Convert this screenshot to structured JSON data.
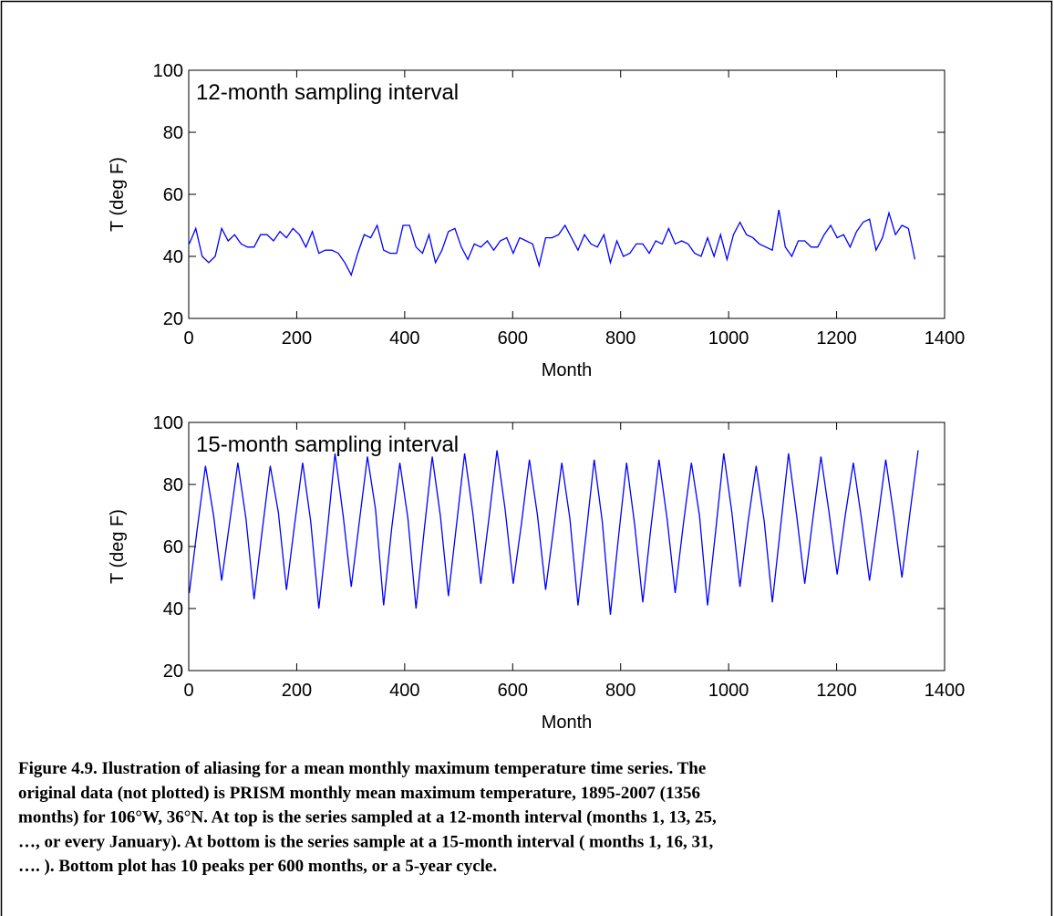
{
  "chart_data": [
    {
      "type": "line",
      "title": "12-month sampling interval",
      "xlabel": "Month",
      "ylabel": "T (deg F)",
      "x": [
        1,
        13,
        25,
        37,
        49,
        61,
        73,
        85,
        97,
        109,
        121,
        133,
        145,
        157,
        169,
        181,
        193,
        205,
        217,
        229,
        241,
        253,
        265,
        277,
        289,
        301,
        313,
        325,
        337,
        349,
        361,
        373,
        385,
        397,
        409,
        421,
        433,
        445,
        457,
        469,
        481,
        493,
        505,
        517,
        529,
        541,
        553,
        565,
        577,
        589,
        601,
        613,
        625,
        637,
        649,
        661,
        673,
        685,
        697,
        709,
        721,
        733,
        745,
        757,
        769,
        781,
        793,
        805,
        817,
        829,
        841,
        853,
        865,
        877,
        889,
        901,
        913,
        925,
        937,
        949,
        961,
        973,
        985,
        997,
        1009,
        1021,
        1033,
        1045,
        1057,
        1069,
        1081,
        1093,
        1105,
        1117,
        1129,
        1141,
        1153,
        1165,
        1177,
        1189,
        1201,
        1213,
        1225,
        1237,
        1249,
        1261,
        1273,
        1285,
        1297,
        1309,
        1321,
        1333,
        1345
      ],
      "series": [
        {
          "color": "#0000ff",
          "values": [
            44,
            49,
            40,
            38,
            40,
            49,
            45,
            47,
            44,
            43,
            43,
            47,
            47,
            45,
            48,
            46,
            49,
            47,
            43,
            48,
            41,
            42,
            42,
            41,
            38,
            34,
            41,
            47,
            46,
            50,
            42,
            41,
            41,
            50,
            50,
            43,
            41,
            47,
            38,
            42,
            48,
            49,
            43,
            39,
            44,
            43,
            45,
            42,
            45,
            46,
            41,
            46,
            45,
            44,
            37,
            46,
            46,
            47,
            50,
            46,
            42,
            47,
            44,
            43,
            47,
            38,
            45,
            40,
            41,
            44,
            44,
            41,
            45,
            44,
            49,
            44,
            45,
            44,
            41,
            40,
            46,
            40,
            47,
            39,
            47,
            51,
            47,
            46,
            44,
            43,
            42,
            55,
            43,
            40,
            45,
            45,
            43,
            43,
            47,
            50,
            46,
            47,
            43,
            48,
            51,
            52,
            42,
            46,
            54,
            47,
            50,
            49,
            39
          ]
        }
      ],
      "xlim": [
        0,
        1400
      ],
      "ylim": [
        20,
        100
      ],
      "xticks": [
        0,
        200,
        400,
        600,
        800,
        1000,
        1200,
        1400
      ],
      "yticks": [
        20,
        40,
        60,
        80,
        100
      ]
    },
    {
      "type": "line",
      "title": "15-month sampling interval",
      "xlabel": "Month",
      "ylabel": "T (deg F)",
      "x": [
        1,
        16,
        31,
        46,
        61,
        76,
        91,
        106,
        121,
        136,
        151,
        166,
        181,
        196,
        211,
        226,
        241,
        256,
        271,
        286,
        301,
        316,
        331,
        346,
        361,
        376,
        391,
        406,
        421,
        436,
        451,
        466,
        481,
        496,
        511,
        526,
        541,
        556,
        571,
        586,
        601,
        616,
        631,
        646,
        661,
        676,
        691,
        706,
        721,
        736,
        751,
        766,
        781,
        796,
        811,
        826,
        841,
        856,
        871,
        886,
        901,
        916,
        931,
        946,
        961,
        976,
        991,
        1006,
        1021,
        1036,
        1051,
        1066,
        1081,
        1096,
        1111,
        1126,
        1141,
        1156,
        1171,
        1186,
        1201,
        1216,
        1231,
        1246,
        1261,
        1276,
        1291,
        1306,
        1321,
        1336,
        1351
      ],
      "series": [
        {
          "color": "#0000ff",
          "values": [
            45,
            66,
            86,
            70,
            49,
            68,
            87,
            69,
            43,
            65,
            86,
            71,
            46,
            67,
            87,
            68,
            40,
            64,
            90,
            70,
            47,
            68,
            89,
            72,
            41,
            66,
            87,
            69,
            40,
            65,
            89,
            70,
            44,
            67,
            90,
            71,
            48,
            69,
            91,
            72,
            48,
            67,
            88,
            70,
            46,
            66,
            87,
            69,
            41,
            64,
            88,
            68,
            38,
            63,
            87,
            67,
            42,
            66,
            88,
            69,
            45,
            67,
            87,
            70,
            41,
            65,
            90,
            71,
            47,
            68,
            86,
            68,
            42,
            66,
            90,
            70,
            48,
            69,
            89,
            71,
            51,
            70,
            87,
            69,
            49,
            68,
            88,
            70,
            50,
            71,
            91
          ]
        }
      ],
      "xlim": [
        0,
        1400
      ],
      "ylim": [
        20,
        100
      ],
      "xticks": [
        0,
        200,
        400,
        600,
        800,
        1000,
        1200,
        1400
      ],
      "yticks": [
        20,
        40,
        60,
        80,
        100
      ]
    }
  ],
  "caption": [
    "Figure 4.9.  Ilustration of aliasing for a mean monthly maximum temperature time series.  The",
    "original data (not plotted) is PRISM monthly mean maximum temperature, 1895-2007 (1356",
    "months) for 106°W, 36°N. At top is the series sampled at a 12-month interval (months 1, 13, 25,",
    "…, or every January).  At bottom is the series sample at a 15-month interval ( months 1, 16, 31,",
    "…. ).   Bottom plot has 10 peaks per 600 months, or a 5-year cycle."
  ]
}
